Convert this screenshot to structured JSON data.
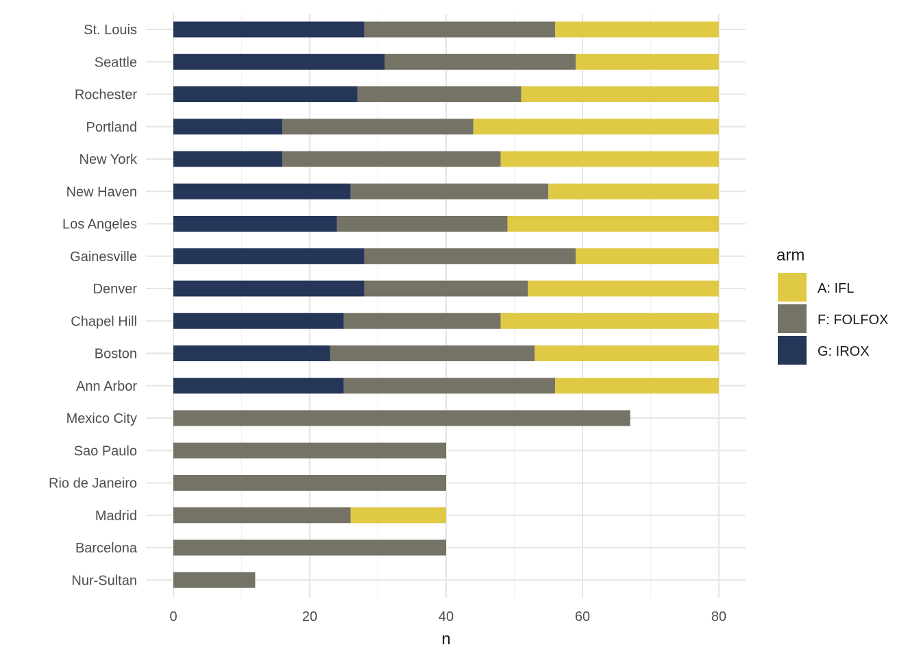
{
  "chart_data": {
    "type": "bar",
    "orientation": "horizontal",
    "stacked": true,
    "categories": [
      "St. Louis",
      "Seattle",
      "Rochester",
      "Portland",
      "New York",
      "New Haven",
      "Los Angeles",
      "Gainesville",
      "Denver",
      "Chapel Hill",
      "Boston",
      "Ann Arbor",
      "Mexico City",
      "Sao Paulo",
      "Rio de Janeiro",
      "Madrid",
      "Barcelona",
      "Nur-Sultan"
    ],
    "series": [
      {
        "name": "G: IROX",
        "color": "#263659",
        "values": [
          28,
          31,
          27,
          16,
          16,
          26,
          24,
          28,
          28,
          25,
          23,
          25,
          0,
          0,
          0,
          0,
          0,
          0
        ]
      },
      {
        "name": "F: FOLFOX",
        "color": "#757365",
        "values": [
          28,
          28,
          24,
          28,
          32,
          29,
          25,
          31,
          24,
          23,
          30,
          31,
          67,
          40,
          40,
          26,
          40,
          12
        ]
      },
      {
        "name": "A: IFL",
        "color": "#e0c945",
        "values": [
          24,
          21,
          29,
          36,
          32,
          25,
          31,
          21,
          28,
          32,
          27,
          24,
          0,
          0,
          0,
          14,
          0,
          0
        ]
      }
    ],
    "xlabel": "n",
    "ylabel": "",
    "xlim": [
      0,
      80
    ],
    "xticks": [
      "0",
      "20",
      "40",
      "60",
      "80"
    ],
    "grid": true,
    "legend": {
      "title": "arm",
      "placement": "right",
      "entries": [
        "A: IFL",
        "F: FOLFOX",
        "G: IROX"
      ],
      "colors": [
        "#e0c945",
        "#757365",
        "#263659"
      ]
    }
  }
}
